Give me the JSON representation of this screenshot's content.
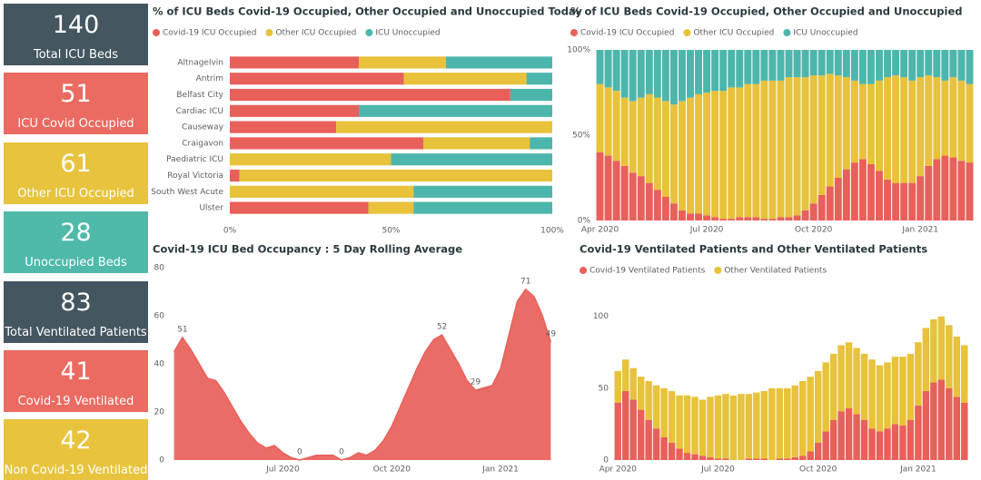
{
  "cards": [
    {
      "value": 140,
      "label": "Total ICU Beds",
      "color": "#44565f"
    },
    {
      "value": 51,
      "label": "ICU Covid Occupied",
      "color": "#eb6a61"
    },
    {
      "value": 61,
      "label": "Other ICU Occupied",
      "color": "#e8c43e"
    },
    {
      "value": 28,
      "label": "Unoccupied Beds",
      "color": "#4fb9aa"
    },
    {
      "value": 83,
      "label": "Total Ventilated Patients",
      "color": "#44565f"
    },
    {
      "value": 41,
      "label": "Covid-19 Ventilated",
      "color": "#eb6a61"
    },
    {
      "value": 42,
      "label": "Non Covid-19 Ventilated",
      "color": "#e8c43e"
    }
  ],
  "chart_data": [
    {
      "type": "hbar",
      "title": "% of ICU Beds Covid-19 Occupied, Other Occupied and Unoccupied Today",
      "categories": [
        "Altnagelvin",
        "Antrim",
        "Belfast City",
        "Cardiac ICU",
        "Causeway",
        "Craigavon",
        "Paediatric ICU",
        "Royal Victoria",
        "South West Acute",
        "Ulster"
      ],
      "series": [
        {
          "name": "Covid-19 ICU Occupied",
          "color": "#e8605a",
          "values": [
            40,
            54,
            87,
            40,
            33,
            60,
            0,
            3,
            0,
            43
          ]
        },
        {
          "name": "Other ICU Occupied",
          "color": "#e8c23a",
          "values": [
            27,
            38,
            0,
            0,
            67,
            33,
            50,
            97,
            57,
            14
          ]
        },
        {
          "name": "ICU Unoccupied",
          "color": "#4db6ac",
          "values": [
            33,
            8,
            13,
            60,
            0,
            7,
            50,
            0,
            43,
            43
          ]
        }
      ],
      "xlim": [
        0,
        100
      ],
      "xticks": [
        {
          "value": 0,
          "label": "0%"
        },
        {
          "value": 50,
          "label": "50%"
        },
        {
          "value": 100,
          "label": "100%"
        }
      ]
    },
    {
      "type": "column",
      "title": "% of ICU Beds Covid-19 Occupied, Other Occupied and Unoccupied",
      "categories": [
        "Apr 2020",
        null,
        null,
        null,
        null,
        null,
        null,
        null,
        null,
        null,
        null,
        null,
        null,
        "Jul 2020",
        null,
        null,
        null,
        null,
        null,
        null,
        null,
        null,
        null,
        null,
        null,
        null,
        "Oct 2020",
        null,
        null,
        null,
        null,
        null,
        null,
        null,
        null,
        null,
        null,
        null,
        null,
        "Jan 2021",
        null,
        null,
        null,
        null,
        null,
        null
      ],
      "series": [
        {
          "name": "Covid-19 ICU Occupied",
          "color": "#e8605a",
          "values": [
            40,
            38,
            35,
            32,
            28,
            26,
            22,
            18,
            14,
            10,
            6,
            4,
            4,
            3,
            2,
            1,
            1,
            2,
            2,
            2,
            1,
            1,
            2,
            2,
            3,
            6,
            10,
            15,
            20,
            25,
            30,
            34,
            36,
            33,
            29,
            24,
            22,
            22,
            22,
            26,
            32,
            36,
            38,
            37,
            35,
            34
          ]
        },
        {
          "name": "Other ICU Occupied",
          "color": "#e8c23a",
          "values": [
            40,
            40,
            41,
            40,
            42,
            46,
            52,
            54,
            56,
            58,
            64,
            68,
            70,
            72,
            74,
            75,
            77,
            76,
            78,
            78,
            81,
            81,
            80,
            82,
            81,
            78,
            75,
            70,
            66,
            60,
            54,
            48,
            44,
            47,
            53,
            60,
            63,
            62,
            60,
            58,
            53,
            48,
            44,
            47,
            47,
            46
          ]
        },
        {
          "name": "ICU Unoccupied",
          "color": "#4db6ac",
          "values": [
            20,
            22,
            24,
            28,
            30,
            28,
            26,
            28,
            30,
            32,
            30,
            28,
            26,
            25,
            24,
            24,
            22,
            22,
            20,
            20,
            18,
            18,
            18,
            16,
            16,
            16,
            15,
            15,
            14,
            15,
            16,
            18,
            20,
            20,
            18,
            16,
            15,
            16,
            18,
            16,
            15,
            16,
            18,
            16,
            18,
            20
          ]
        }
      ],
      "ylim": [
        0,
        100
      ],
      "yticks": [
        {
          "value": 0,
          "label": "0%"
        },
        {
          "value": 50,
          "label": "50%"
        },
        {
          "value": 100,
          "label": "100%"
        }
      ]
    },
    {
      "type": "area",
      "title": "Covid-19 ICU Bed Occupancy : 5 Day Rolling Average",
      "color": "#e8605a",
      "categories": [
        null,
        null,
        null,
        null,
        null,
        null,
        null,
        null,
        null,
        null,
        null,
        null,
        null,
        "Jul 2020",
        null,
        null,
        null,
        null,
        null,
        null,
        null,
        null,
        null,
        null,
        null,
        null,
        "Oct 2020",
        null,
        null,
        null,
        null,
        null,
        null,
        null,
        null,
        null,
        null,
        null,
        null,
        "Jan 2021",
        null,
        null,
        null,
        null,
        null,
        null
      ],
      "values": [
        45,
        51,
        46,
        40,
        34,
        33,
        28,
        22,
        16,
        11,
        7,
        5,
        6,
        3,
        1,
        0,
        1,
        2,
        2,
        2,
        0,
        1,
        3,
        2,
        4,
        8,
        14,
        22,
        30,
        38,
        45,
        50,
        52,
        46,
        40,
        33,
        29,
        30,
        31,
        38,
        52,
        66,
        71,
        68,
        60,
        49
      ],
      "value_labels": [
        null,
        "51",
        null,
        null,
        null,
        null,
        null,
        null,
        null,
        null,
        null,
        null,
        null,
        null,
        null,
        "0",
        null,
        null,
        null,
        null,
        "0",
        null,
        null,
        null,
        null,
        null,
        null,
        null,
        null,
        null,
        null,
        null,
        "52",
        null,
        null,
        null,
        "29",
        null,
        null,
        null,
        null,
        null,
        "71",
        null,
        null,
        "49"
      ],
      "ylim": [
        0,
        80
      ],
      "yticks": [
        0,
        20,
        40,
        60,
        80
      ]
    },
    {
      "type": "column",
      "title": "Covid-19 Ventilated Patients and Other Ventilated Patients",
      "categories": [
        "Apr 2020",
        null,
        null,
        null,
        null,
        null,
        null,
        null,
        null,
        null,
        null,
        null,
        null,
        "Jul 2020",
        null,
        null,
        null,
        null,
        null,
        null,
        null,
        null,
        null,
        null,
        null,
        null,
        "Oct 2020",
        null,
        null,
        null,
        null,
        null,
        null,
        null,
        null,
        null,
        null,
        null,
        null,
        "Jan 2021",
        null,
        null,
        null,
        null,
        null,
        null
      ],
      "series": [
        {
          "name": "Covid-19 Ventilated Patients",
          "color": "#e8605a",
          "values": [
            40,
            48,
            42,
            35,
            28,
            22,
            16,
            12,
            8,
            5,
            4,
            3,
            2,
            1,
            1,
            0,
            0,
            1,
            1,
            1,
            0,
            1,
            1,
            2,
            3,
            6,
            12,
            20,
            28,
            34,
            36,
            32,
            28,
            22,
            20,
            22,
            25,
            24,
            28,
            38,
            48,
            54,
            56,
            50,
            44,
            40
          ]
        },
        {
          "name": "Other Ventilated Patients",
          "color": "#e8c23a",
          "values": [
            22,
            22,
            22,
            23,
            27,
            30,
            34,
            36,
            37,
            40,
            40,
            39,
            42,
            44,
            45,
            45,
            46,
            45,
            46,
            47,
            50,
            49,
            49,
            50,
            52,
            52,
            50,
            48,
            46,
            46,
            46,
            46,
            46,
            48,
            46,
            46,
            47,
            48,
            46,
            44,
            44,
            44,
            44,
            44,
            42,
            40
          ]
        }
      ],
      "ylim": [
        0,
        115
      ],
      "yticks": [
        0,
        50,
        100
      ]
    }
  ]
}
